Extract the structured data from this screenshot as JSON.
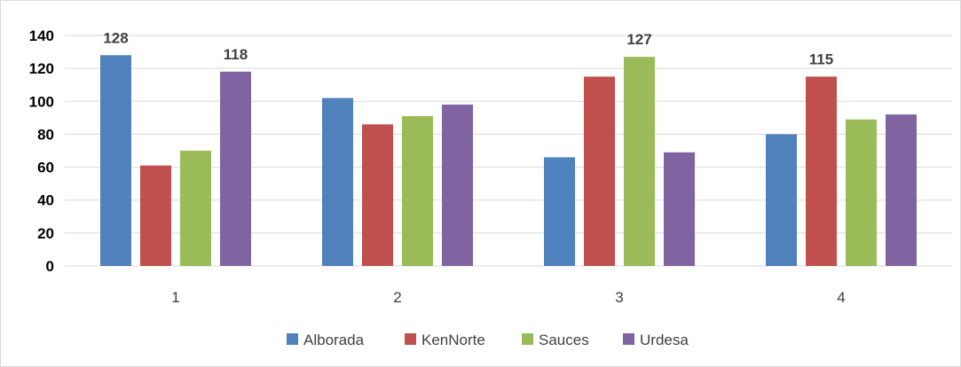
{
  "chart_data": {
    "type": "bar",
    "categories": [
      "1",
      "2",
      "3",
      "4"
    ],
    "series": [
      {
        "name": "Alborada",
        "color": "#4f81bd",
        "values": [
          128,
          102,
          66,
          80
        ]
      },
      {
        "name": "KenNorte",
        "color": "#c0504d",
        "values": [
          61,
          86,
          115,
          115
        ]
      },
      {
        "name": "Sauces",
        "color": "#9bbb59",
        "values": [
          70,
          91,
          127,
          89
        ]
      },
      {
        "name": "Urdesa",
        "color": "#8064a2",
        "values": [
          118,
          98,
          69,
          92
        ]
      }
    ],
    "data_labels": [
      {
        "series": 0,
        "category": 0,
        "text": "128"
      },
      {
        "series": 3,
        "category": 0,
        "text": "118"
      },
      {
        "series": 2,
        "category": 2,
        "text": "127"
      },
      {
        "series": 1,
        "category": 3,
        "text": "115"
      }
    ],
    "yticks": [
      "0",
      "20",
      "40",
      "60",
      "80",
      "100",
      "120",
      "140"
    ],
    "ylim": [
      0,
      140
    ],
    "grid": true,
    "legend": "bottom"
  }
}
